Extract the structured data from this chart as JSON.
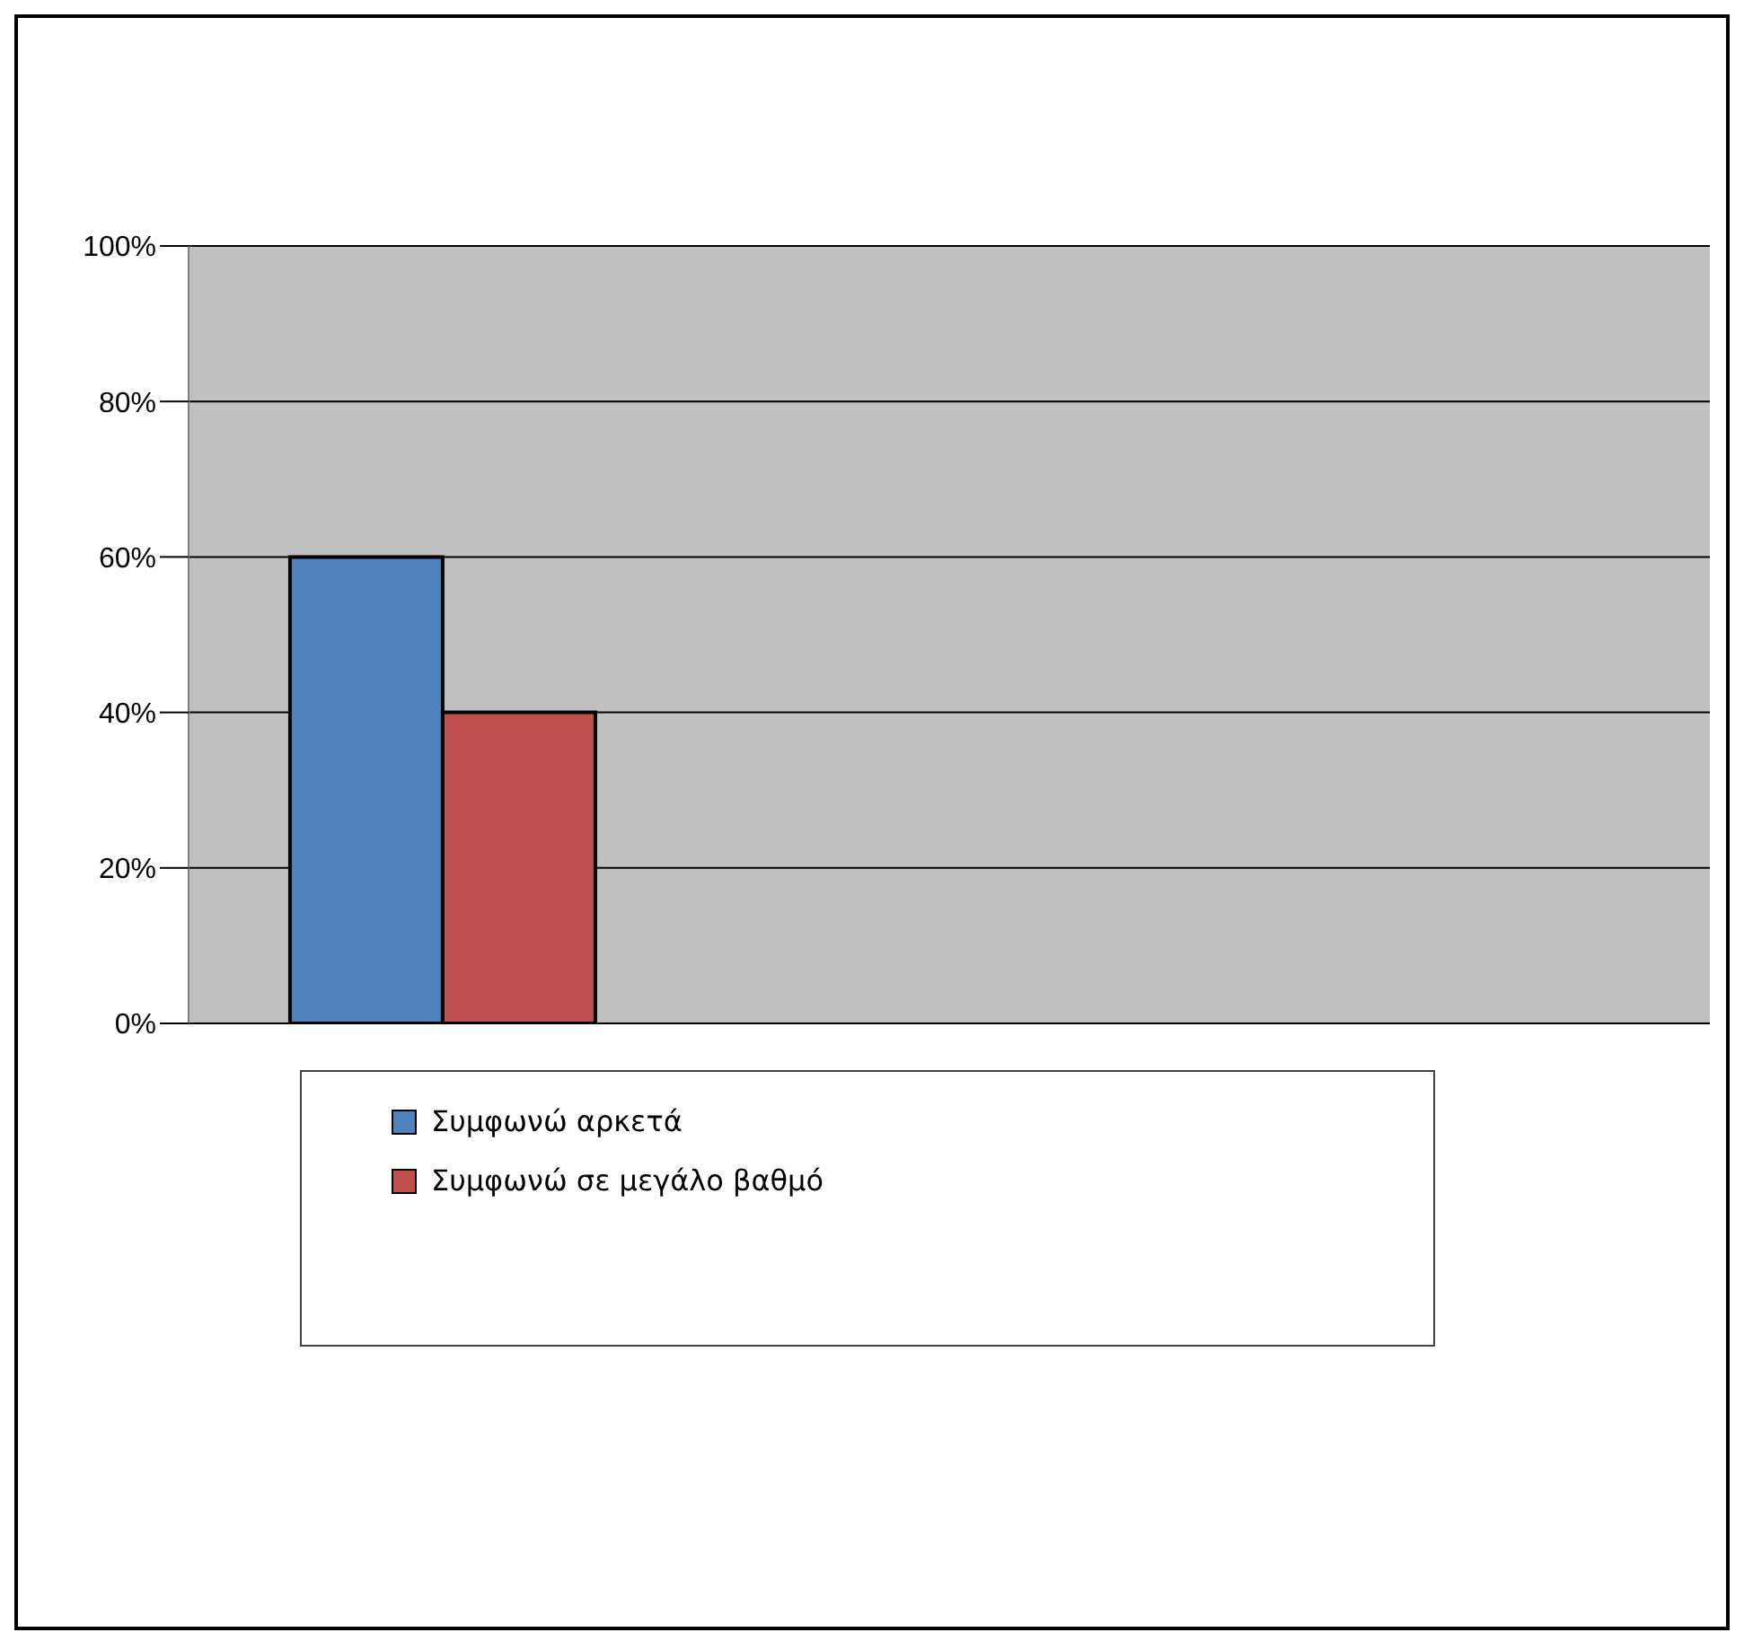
{
  "chart_data": {
    "type": "bar",
    "categories": [
      null,
      null,
      null
    ],
    "series": [
      {
        "name": "Συμφωνώ αρκετά",
        "color": "#4f81bd",
        "values": [
          60,
          null,
          null
        ]
      },
      {
        "name": "Συμφωνώ σε μεγάλο βαθμό",
        "color": "#c0504d",
        "values": [
          40,
          null,
          null
        ]
      }
    ],
    "ylim": [
      0,
      100
    ],
    "yticks": [
      {
        "value": 0,
        "label": "0%"
      },
      {
        "value": 20,
        "label": "20%"
      },
      {
        "value": 40,
        "label": "40%"
      },
      {
        "value": 60,
        "label": "60%"
      },
      {
        "value": 80,
        "label": "80%"
      },
      {
        "value": 100,
        "label": "100%"
      }
    ],
    "grid": "y",
    "legend": "bottom"
  }
}
